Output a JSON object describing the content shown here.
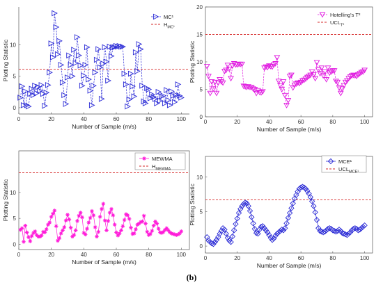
{
  "figure_label": "(b)",
  "chart_data": [
    {
      "type": "line",
      "xlabel": "Number of Sample (m/s)",
      "ylabel": "Plotting Statistic",
      "xlim": [
        0,
        105
      ],
      "ylim": [
        -1,
        16
      ],
      "xticks": [
        0,
        20,
        40,
        60,
        80,
        100
      ],
      "yticks": [
        0,
        5,
        10
      ],
      "legend_position": "top-right",
      "series": [
        {
          "name": "MC¹",
          "marker": "triangle-right",
          "color": "#2b2bd6",
          "line": "dashed",
          "x": [
            1,
            2,
            3,
            4,
            5,
            6,
            7,
            8,
            9,
            10,
            11,
            12,
            13,
            14,
            15,
            16,
            17,
            18,
            19,
            20,
            21,
            22,
            23,
            24,
            25,
            26,
            27,
            28,
            29,
            30,
            31,
            32,
            33,
            34,
            35,
            36,
            37,
            38,
            39,
            40,
            41,
            42,
            43,
            44,
            45,
            46,
            47,
            48,
            49,
            50,
            51,
            52,
            53,
            54,
            55,
            56,
            57,
            58,
            59,
            60,
            61,
            62,
            63,
            64,
            65,
            66,
            67,
            68,
            69,
            70,
            71,
            72,
            73,
            74,
            75,
            76,
            77,
            78,
            79,
            80,
            81,
            82,
            83,
            84,
            85,
            86,
            87,
            88,
            89,
            90,
            91,
            92,
            93,
            94,
            95,
            96,
            97,
            98,
            99,
            100
          ],
          "values": [
            1.6,
            3.4,
            0.4,
            2.6,
            0.4,
            0.2,
            2.2,
            3.0,
            2.0,
            3.5,
            2.3,
            3.3,
            2.7,
            3.6,
            2.2,
            0.3,
            2.4,
            3.6,
            5.6,
            10.2,
            8.0,
            15.0,
            12.8,
            8.5,
            10.6,
            6.8,
            4.0,
            2.0,
            0.6,
            4.8,
            8.3,
            6.8,
            5.0,
            9.2,
            7.1,
            11.2,
            8.3,
            6.7,
            3.5,
            5.1,
            6.8,
            9.6,
            4.5,
            2.7,
            0.4,
            3.5,
            5.6,
            7.6,
            9.3,
            6.4,
            1.4,
            7.0,
            9.6,
            7.3,
            4.3,
            9.7,
            8.2,
            9.6,
            9.6,
            9.8,
            9.7,
            9.8,
            9.7,
            9.7,
            5.4,
            3.7,
            0.2,
            1.3,
            5.4,
            3.4,
            1.8,
            8.8,
            5.8,
            10.1,
            9.3,
            3.5,
            1.0,
            0.7,
            3.1,
            2.9,
            1.5,
            2.1,
            1.7,
            1.4,
            0.7,
            2.5,
            1.1,
            1.8,
            1.9,
            0.7,
            2.8,
            1.2,
            0.4,
            2.6,
            1.9,
            0.9,
            2.0,
            3.7,
            1.9,
            1.6
          ]
        },
        {
          "name": "H",
          "name_sub": "MC¹",
          "color": "#d62828",
          "line": "dashed",
          "values": [
            6.1
          ]
        }
      ]
    },
    {
      "type": "line",
      "xlabel": "Number of Sample (m/s)",
      "ylabel": "Plotting Statistic",
      "xlim": [
        0,
        105
      ],
      "ylim": [
        0,
        20
      ],
      "xticks": [
        0,
        20,
        40,
        60,
        80,
        100
      ],
      "yticks": [
        0,
        5,
        10,
        15,
        20
      ],
      "legend_position": "top-right",
      "series": [
        {
          "name": "Hotelling's T²",
          "marker": "triangle-down",
          "color": "#e018e0",
          "line": "dashed",
          "x": [
            1,
            2,
            3,
            4,
            5,
            6,
            7,
            8,
            9,
            10,
            11,
            12,
            13,
            14,
            15,
            16,
            17,
            18,
            19,
            20,
            21,
            22,
            23,
            24,
            25,
            26,
            27,
            28,
            29,
            30,
            31,
            32,
            33,
            34,
            35,
            36,
            37,
            38,
            39,
            40,
            41,
            42,
            43,
            44,
            45,
            46,
            47,
            48,
            49,
            50,
            51,
            52,
            53,
            54,
            55,
            56,
            57,
            58,
            59,
            60,
            61,
            62,
            63,
            64,
            65,
            66,
            67,
            68,
            69,
            70,
            71,
            72,
            73,
            74,
            75,
            76,
            77,
            78,
            79,
            80,
            81,
            82,
            83,
            84,
            85,
            86,
            87,
            88,
            89,
            90,
            91,
            92,
            93,
            94,
            95,
            96,
            97,
            98,
            99,
            100
          ],
          "values": [
            9.2,
            7.4,
            4.3,
            6.4,
            5.1,
            6.3,
            4.3,
            6.2,
            6.8,
            6.4,
            6.2,
            8.3,
            8.5,
            9.4,
            8.7,
            7.0,
            9.3,
            9.7,
            9.5,
            9.5,
            9.6,
            9.6,
            9.6,
            5.6,
            5.5,
            5.4,
            5.5,
            5.4,
            5.4,
            5.1,
            5.0,
            4.3,
            4.8,
            4.5,
            4.4,
            4.6,
            8.9,
            9.1,
            9.0,
            9.3,
            9.2,
            9.1,
            9.5,
            9.7,
            10.8,
            6.5,
            5.7,
            5.0,
            6.4,
            3.9,
            2.1,
            3.0,
            7.4,
            7.6,
            5.3,
            5.8,
            6.0,
            6.2,
            6.1,
            6.3,
            6.6,
            6.7,
            6.9,
            7.2,
            7.4,
            7.6,
            8.2,
            7.7,
            7.0,
            9.9,
            8.6,
            7.9,
            8.9,
            7.5,
            8.2,
            6.8,
            8.9,
            8.0,
            8.2,
            8.4,
            8.4,
            6.5,
            6.3,
            5.3,
            4.3,
            5.1,
            5.7,
            6.3,
            6.6,
            7.0,
            7.3,
            7.5,
            7.6,
            7.5,
            7.4,
            7.7,
            7.9,
            8.1,
            8.2,
            8.5
          ]
        },
        {
          "name": "UCL",
          "name_sub": "T²",
          "color": "#d62828",
          "line": "dashed",
          "values": [
            15.0
          ]
        }
      ]
    },
    {
      "type": "line",
      "xlabel": "Number of Sample (m/s)",
      "ylabel": "Plotting Statistic",
      "xlim": [
        0,
        105
      ],
      "ylim": [
        -1,
        18
      ],
      "xticks": [
        0,
        20,
        40,
        60,
        80,
        100
      ],
      "yticks": [
        0,
        5,
        10
      ],
      "legend_position": "top-right",
      "series": [
        {
          "name": "MEWMA",
          "marker": "star",
          "color": "#ff1ad9",
          "line": "solid",
          "x": [
            1,
            2,
            3,
            4,
            5,
            6,
            7,
            8,
            9,
            10,
            11,
            12,
            13,
            14,
            15,
            16,
            17,
            18,
            19,
            20,
            21,
            22,
            23,
            24,
            25,
            26,
            27,
            28,
            29,
            30,
            31,
            32,
            33,
            34,
            35,
            36,
            37,
            38,
            39,
            40,
            41,
            42,
            43,
            44,
            45,
            46,
            47,
            48,
            49,
            50,
            51,
            52,
            53,
            54,
            55,
            56,
            57,
            58,
            59,
            60,
            61,
            62,
            63,
            64,
            65,
            66,
            67,
            68,
            69,
            70,
            71,
            72,
            73,
            74,
            75,
            76,
            77,
            78,
            79,
            80,
            81,
            82,
            83,
            84,
            85,
            86,
            87,
            88,
            89,
            90,
            91,
            92,
            93,
            94,
            95,
            96,
            97,
            98,
            99,
            100
          ],
          "values": [
            2.8,
            3.1,
            0.5,
            3.6,
            2.3,
            1.4,
            0.6,
            1.6,
            2.2,
            2.5,
            1.8,
            1.5,
            1.5,
            1.7,
            2.4,
            2.3,
            2.9,
            3.8,
            4.2,
            5.3,
            5.9,
            6.5,
            3.5,
            0.7,
            1.2,
            2.1,
            2.7,
            3.3,
            4.6,
            5.7,
            4.8,
            3.2,
            1.5,
            1.8,
            2.7,
            4.5,
            5.5,
            6.1,
            5.2,
            2.2,
            1.9,
            3.0,
            4.2,
            5.1,
            6.4,
            5.6,
            3.3,
            1.5,
            2.4,
            5.3,
            6.8,
            7.8,
            4.6,
            2.7,
            4.5,
            6.1,
            6.8,
            5.6,
            3.8,
            2.3,
            1.7,
            2.1,
            2.7,
            3.5,
            4.7,
            5.8,
            5.6,
            4.9,
            3.2,
            2.0,
            2.1,
            2.9,
            3.8,
            4.0,
            4.3,
            4.4,
            5.5,
            4.0,
            2.4,
            1.8,
            2.0,
            2.6,
            3.6,
            4.4,
            4.0,
            3.0,
            2.3,
            2.2,
            2.4,
            2.8,
            3.1,
            2.7,
            2.3,
            2.1,
            2.0,
            1.9,
            1.8,
            1.9,
            2.1,
            2.5
          ]
        },
        {
          "name": "H",
          "name_sub": "MEWMA",
          "color": "#d62828",
          "line": "dashed",
          "values": [
            13.8
          ]
        }
      ]
    },
    {
      "type": "line",
      "xlabel": "Number of Sample (m/s)",
      "ylabel": "Plotting Statistic",
      "xlim": [
        0,
        105
      ],
      "ylim": [
        -1,
        13
      ],
      "xticks": [
        0,
        20,
        40,
        60,
        80,
        100
      ],
      "yticks": [
        0,
        5,
        10
      ],
      "legend_position": "top-right",
      "series": [
        {
          "name": "MCE¹",
          "marker": "diamond",
          "color": "#2b2bd6",
          "line": "solid",
          "x": [
            1,
            2,
            3,
            4,
            5,
            6,
            7,
            8,
            9,
            10,
            11,
            12,
            13,
            14,
            15,
            16,
            17,
            18,
            19,
            20,
            21,
            22,
            23,
            24,
            25,
            26,
            27,
            28,
            29,
            30,
            31,
            32,
            33,
            34,
            35,
            36,
            37,
            38,
            39,
            40,
            41,
            42,
            43,
            44,
            45,
            46,
            47,
            48,
            49,
            50,
            51,
            52,
            53,
            54,
            55,
            56,
            57,
            58,
            59,
            60,
            61,
            62,
            63,
            64,
            65,
            66,
            67,
            68,
            69,
            70,
            71,
            72,
            73,
            74,
            75,
            76,
            77,
            78,
            79,
            80,
            81,
            82,
            83,
            84,
            85,
            86,
            87,
            88,
            89,
            90,
            91,
            92,
            93,
            94,
            95,
            96,
            97,
            98,
            99,
            100
          ],
          "values": [
            1.3,
            0.8,
            0.6,
            0.4,
            0.3,
            0.6,
            0.9,
            1.3,
            1.8,
            2.2,
            2.6,
            2.4,
            1.8,
            1.2,
            0.8,
            0.6,
            1.4,
            2.3,
            3.2,
            4.0,
            4.8,
            5.4,
            5.8,
            6.1,
            6.3,
            6.2,
            5.8,
            5.1,
            4.2,
            3.3,
            2.5,
            1.9,
            1.8,
            2.4,
            2.8,
            2.9,
            2.6,
            2.3,
            2.0,
            1.6,
            1.2,
            0.9,
            1.1,
            1.5,
            1.8,
            2.0,
            2.2,
            2.4,
            2.3,
            2.6,
            3.3,
            4.1,
            4.8,
            5.5,
            6.2,
            6.9,
            7.4,
            7.9,
            8.3,
            8.5,
            8.6,
            8.5,
            8.3,
            8.0,
            7.6,
            7.1,
            6.5,
            5.8,
            4.9,
            3.8,
            2.6,
            2.2,
            2.1,
            2.0,
            2.1,
            2.3,
            2.5,
            2.6,
            2.5,
            2.3,
            2.2,
            2.1,
            2.2,
            2.4,
            2.2,
            1.9,
            1.8,
            1.7,
            1.6,
            1.8,
            2.0,
            2.3,
            2.5,
            2.6,
            2.5,
            2.3,
            2.4,
            2.6,
            2.8,
            3.0
          ]
        },
        {
          "name": "UCL",
          "name_sub": "MCE¹",
          "color": "#d62828",
          "line": "dashed",
          "values": [
            6.7
          ]
        }
      ]
    }
  ]
}
